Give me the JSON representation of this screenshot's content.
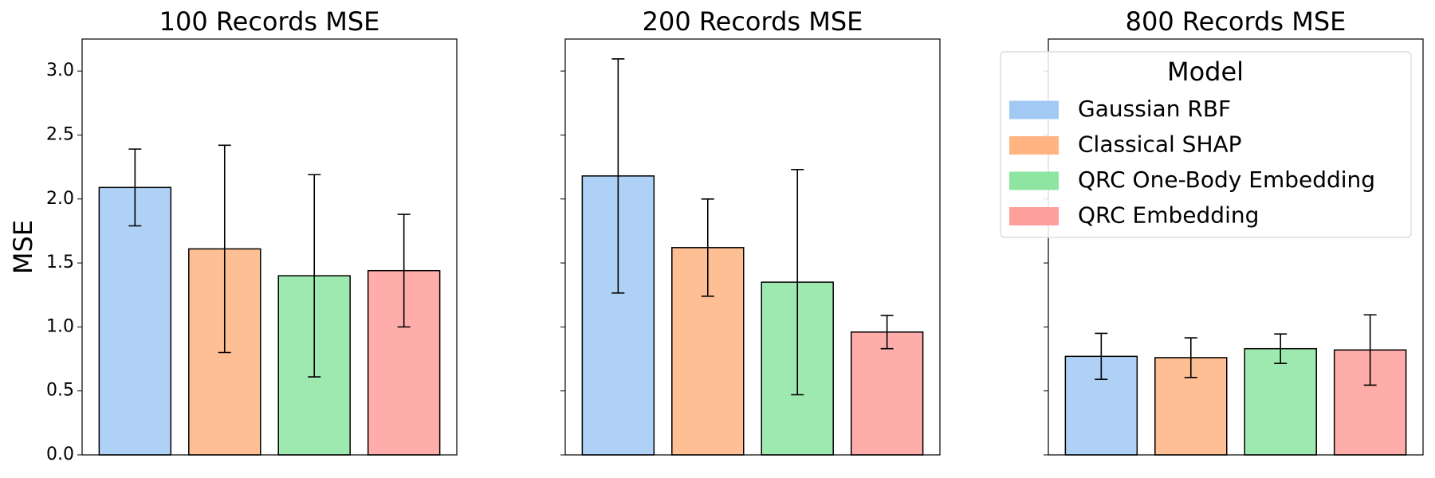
{
  "chart_data": [
    {
      "type": "bar",
      "title": "100 Records MSE",
      "ylabel": "MSE",
      "ylim": [
        0,
        3.25
      ],
      "yticks": [
        {
          "value": 0,
          "label": "0.0"
        },
        {
          "value": 0.5,
          "label": "0.5"
        },
        {
          "value": 1,
          "label": "1.0"
        },
        {
          "value": 1.5,
          "label": "1.5"
        },
        {
          "value": 2,
          "label": "2.0"
        },
        {
          "value": 2.5,
          "label": "2.5"
        },
        {
          "value": 3,
          "label": "3.0"
        }
      ],
      "series": [
        {
          "color": "#a1c9f4",
          "values": [
            2.09
          ],
          "errors": [
            0.3
          ]
        },
        {
          "color": "#ffb482",
          "values": [
            1.61
          ],
          "errors": [
            0.81
          ]
        },
        {
          "color": "#8de5a1",
          "values": [
            1.4
          ],
          "errors": [
            0.79
          ]
        },
        {
          "color": "#ff9f9b",
          "values": [
            1.44
          ],
          "errors": [
            0.44
          ]
        }
      ]
    },
    {
      "type": "bar",
      "title": "200 Records MSE",
      "series": [
        {
          "color": "#a1c9f4",
          "values": [
            2.18
          ],
          "errors": [
            0.915
          ]
        },
        {
          "color": "#ffb482",
          "values": [
            1.62
          ],
          "errors": [
            0.38
          ]
        },
        {
          "color": "#8de5a1",
          "values": [
            1.35
          ],
          "errors": [
            0.88
          ]
        },
        {
          "color": "#ff9f9b",
          "values": [
            0.96
          ],
          "errors": [
            0.13
          ]
        }
      ]
    },
    {
      "type": "bar",
      "title": "800 Records MSE",
      "legend": "upper right",
      "legend_title": "Model",
      "series": [
        {
          "name": "Gaussian RBF",
          "color": "#a1c9f4",
          "values": [
            0.77
          ],
          "errors": [
            0.18
          ]
        },
        {
          "name": "Classical SHAP",
          "color": "#ffb482",
          "values": [
            0.76
          ],
          "errors": [
            0.155
          ]
        },
        {
          "name": "QRC One-Body Embedding",
          "color": "#8de5a1",
          "values": [
            0.83
          ],
          "errors": [
            0.115
          ]
        },
        {
          "name": "QRC Embedding",
          "color": "#ff9f9b",
          "values": [
            0.82
          ],
          "errors": [
            0.275
          ]
        }
      ]
    }
  ]
}
